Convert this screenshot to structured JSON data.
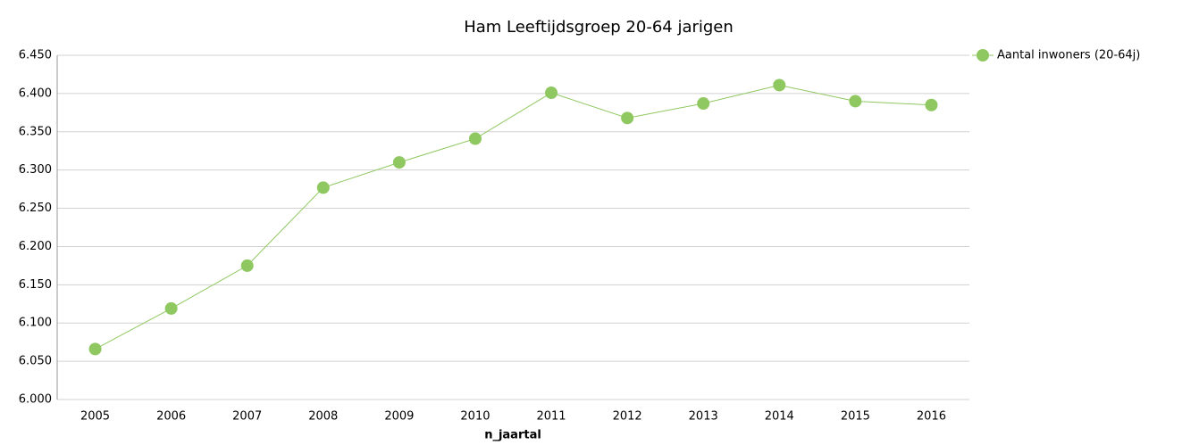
{
  "chart_data": {
    "type": "line",
    "title": "Ham  Leeftijdsgroep 20-64 jarigen",
    "x_label": "n_jaartal",
    "categories": [
      "2005",
      "2006",
      "2007",
      "2008",
      "2009",
      "2010",
      "2011",
      "2012",
      "2013",
      "2014",
      "2015",
      "2016"
    ],
    "series": [
      {
        "name": "Aantal inwoners  (20-64j)",
        "color": "#8fc860",
        "values": [
          6066,
          6119,
          6175,
          6277,
          6310,
          6341,
          6401,
          6368,
          6387,
          6411,
          6390,
          6385
        ]
      }
    ],
    "ylim": [
      6000,
      6450
    ],
    "yticks": [
      {
        "value": 6000,
        "label": "6.000"
      },
      {
        "value": 6050,
        "label": "6.050"
      },
      {
        "value": 6100,
        "label": "6.100"
      },
      {
        "value": 6150,
        "label": "6.150"
      },
      {
        "value": 6200,
        "label": "6.200"
      },
      {
        "value": 6250,
        "label": "6.250"
      },
      {
        "value": 6300,
        "label": "6.300"
      },
      {
        "value": 6350,
        "label": "6.350"
      },
      {
        "value": 6400,
        "label": "6.400"
      },
      {
        "value": 6450,
        "label": "6.450"
      }
    ],
    "grid": true,
    "legend": "right"
  }
}
